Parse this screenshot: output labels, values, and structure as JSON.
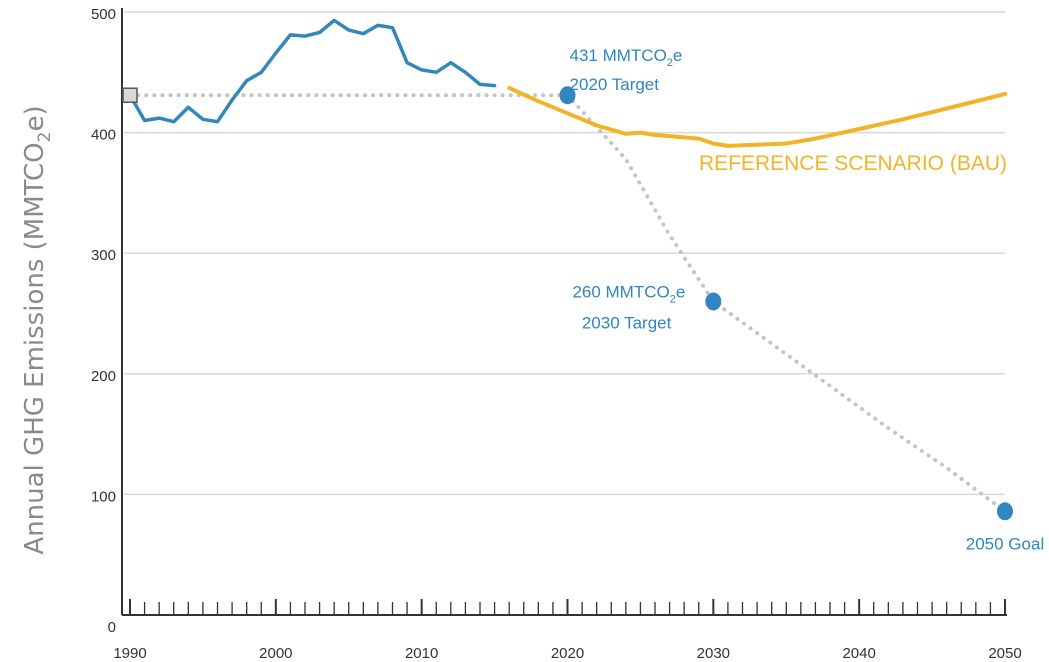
{
  "chart_data": {
    "type": "line",
    "ylabel": {
      "main": "Annual GHG Emissions (MMTCO",
      "sub": "2",
      "tail": "e)"
    },
    "xlim": [
      1990,
      2050
    ],
    "ylim": [
      0,
      500
    ],
    "y_ticks": [
      "0",
      "100",
      "200",
      "300",
      "400",
      "500"
    ],
    "x_ticks": [
      "1990",
      "2000",
      "2010",
      "2020",
      "2030",
      "2040",
      "2050"
    ],
    "grid": true,
    "colors": {
      "historical": "#3388bb",
      "reference": "#f0b429",
      "pathway": "#c4c4c4",
      "marker": "#2f86c0",
      "grid": "#d8d8d8",
      "axis": "#333333"
    },
    "series": [
      {
        "key": "historical",
        "x": [
          1990,
          1991,
          1992,
          1993,
          1994,
          1995,
          1996,
          1997,
          1998,
          1999,
          2000,
          2001,
          2002,
          2003,
          2004,
          2005,
          2006,
          2007,
          2008,
          2009,
          2010,
          2011,
          2012,
          2013,
          2014,
          2015
        ],
        "y": [
          431,
          410,
          412,
          409,
          421,
          411,
          409,
          427,
          443,
          450,
          466,
          481,
          480,
          483,
          493,
          485,
          482,
          489,
          487,
          458,
          452,
          450,
          458,
          450,
          440,
          439
        ]
      },
      {
        "key": "reference",
        "name": "REFERENCE SCENARIO (BAU)",
        "x": [
          2016,
          2018,
          2020,
          2022,
          2024,
          2025,
          2026,
          2028,
          2029,
          2030,
          2031,
          2033,
          2035,
          2037,
          2040,
          2043,
          2046,
          2050
        ],
        "y": [
          437,
          426,
          416,
          406,
          399,
          400,
          398,
          396,
          395,
          391,
          389,
          390,
          391,
          395,
          403,
          411,
          420,
          432
        ]
      },
      {
        "key": "pathway",
        "x": [
          1990,
          2020,
          2024,
          2027,
          2030,
          2034,
          2038,
          2042,
          2046,
          2050
        ],
        "y": [
          431,
          431,
          378,
          315,
          260,
          225,
          190,
          155,
          122,
          86
        ]
      }
    ],
    "baseline_marker": {
      "x": 1990,
      "y": 431
    },
    "targets": [
      {
        "x": 2020,
        "y": 431,
        "value_label": "431 MMTCO",
        "value_sub": "2",
        "value_tail": "e",
        "label": "2020 Target"
      },
      {
        "x": 2030,
        "y": 260,
        "value_label": "260 MMTCO",
        "value_sub": "2",
        "value_tail": "e",
        "label": "2030 Target"
      },
      {
        "x": 2050,
        "y": 86,
        "label": "2050 Goal"
      }
    ]
  }
}
